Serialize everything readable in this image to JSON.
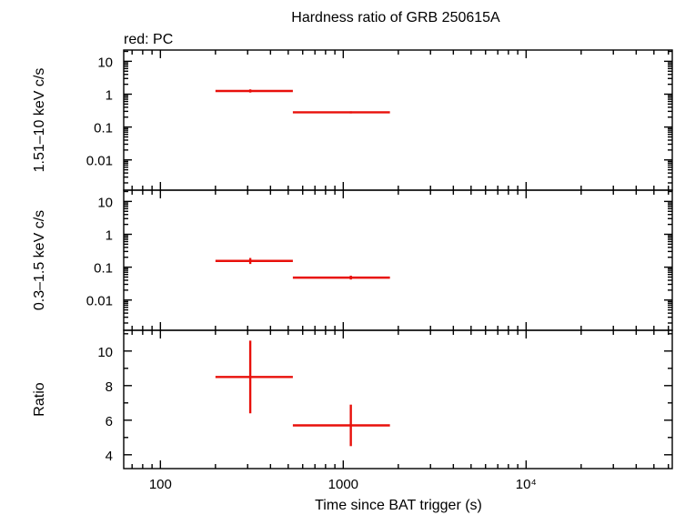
{
  "title": "Hardness ratio of GRB 250615A",
  "subtitle": "red: PC",
  "xlabel": "Time since BAT trigger (s)",
  "colors": {
    "series": "#e8100b",
    "axis": "#000000",
    "background": "#ffffff"
  },
  "chart_data": [
    {
      "type": "scatter",
      "panel": "top",
      "ylabel": "1.51–10 keV c/s",
      "xscale": "log",
      "yscale": "log",
      "xlim": [
        63,
        63000
      ],
      "ylim": [
        0.0012,
        22
      ],
      "ytick_values": [
        0.01,
        0.1,
        1,
        10
      ],
      "ytick_labels": [
        "0.01",
        "0.1",
        "1",
        "10"
      ],
      "series": [
        {
          "points": [
            {
              "x": 310,
              "xlo": 200,
              "xhi": 530,
              "y": 1.25,
              "ylo": 1.12,
              "yhi": 1.4
            },
            {
              "x": 1100,
              "xlo": 530,
              "xhi": 1800,
              "y": 0.28,
              "ylo": 0.26,
              "yhi": 0.3
            }
          ]
        }
      ]
    },
    {
      "type": "scatter",
      "panel": "middle",
      "ylabel": "0.3–1.5 keV c/s",
      "xscale": "log",
      "yscale": "log",
      "xlim": [
        63,
        63000
      ],
      "ylim": [
        0.0012,
        22
      ],
      "ytick_values": [
        0.01,
        0.1,
        1,
        10
      ],
      "ytick_labels": [
        "0.01",
        "0.1",
        "1",
        "10"
      ],
      "series": [
        {
          "points": [
            {
              "x": 310,
              "xlo": 200,
              "xhi": 530,
              "y": 0.155,
              "ylo": 0.125,
              "yhi": 0.19
            },
            {
              "x": 1100,
              "xlo": 530,
              "xhi": 1800,
              "y": 0.048,
              "ylo": 0.042,
              "yhi": 0.055
            }
          ]
        }
      ]
    },
    {
      "type": "scatter",
      "panel": "bottom",
      "ylabel": "Ratio",
      "xscale": "log",
      "yscale": "linear",
      "xlim": [
        63,
        63000
      ],
      "ylim": [
        3.2,
        11.2
      ],
      "ytick_values": [
        4,
        6,
        8,
        10
      ],
      "ytick_labels": [
        "4",
        "6",
        "8",
        "10"
      ],
      "xtick_values": [
        100,
        1000,
        10000
      ],
      "xtick_labels": [
        "100",
        "1000",
        "10⁴"
      ],
      "series": [
        {
          "points": [
            {
              "x": 310,
              "xlo": 200,
              "xhi": 530,
              "y": 8.5,
              "ylo": 6.4,
              "yhi": 10.6
            },
            {
              "x": 1100,
              "xlo": 530,
              "xhi": 1800,
              "y": 5.7,
              "ylo": 4.5,
              "yhi": 6.9
            }
          ]
        }
      ]
    }
  ]
}
